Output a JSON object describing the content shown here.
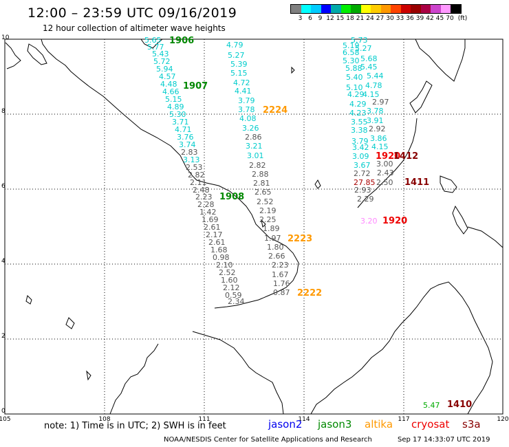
{
  "title": "12:00 – 23:59 UTC 09/16/2019",
  "subtitle": "12 hour collection of altimeter wave heights",
  "scale": {
    "colors": [
      "#808080",
      "#00ffff",
      "#00ccff",
      "#0000ff",
      "#00aaaa",
      "#00ee00",
      "#00aa00",
      "#ffff00",
      "#ffcc00",
      "#ff9900",
      "#ff4400",
      "#cc0000",
      "#990000",
      "#aa0044",
      "#cc44cc",
      "#ff99ff",
      "#000000"
    ],
    "labels": [
      "3",
      "6",
      "9",
      "12",
      "15",
      "18",
      "21",
      "24",
      "27",
      "30",
      "33",
      "36",
      "39",
      "42",
      "45",
      "70",
      "(ft)"
    ]
  },
  "axes": {
    "lon_ticks": [
      "105",
      "108",
      "111",
      "114",
      "117",
      "120"
    ],
    "lat_ticks": [
      "10",
      "8",
      "6",
      "4",
      "2",
      "0"
    ]
  },
  "passes": [
    {
      "time": "1906",
      "satellite": "jason3",
      "color": "#008800"
    },
    {
      "time": "1907",
      "satellite": "jason3",
      "color": "#008800"
    },
    {
      "time": "1908",
      "satellite": "jason3",
      "color": "#008800"
    },
    {
      "time": "2224",
      "satellite": "altika",
      "color": "#ff9900"
    },
    {
      "time": "2223",
      "satellite": "altika",
      "color": "#ff9900"
    },
    {
      "time": "2222",
      "satellite": "altika",
      "color": "#ff9900"
    },
    {
      "time": "1920",
      "satellite": "cryosat",
      "color": "#ee0000"
    },
    {
      "time": "1920",
      "satellite": "cryosat",
      "color": "#ee0000"
    },
    {
      "time": "1412",
      "satellite": "s3a",
      "color": "#880000"
    },
    {
      "time": "1411",
      "satellite": "s3a",
      "color": "#880000"
    },
    {
      "time": "1410",
      "satellite": "s3a",
      "color": "#880000"
    }
  ],
  "wave_heights": [
    {
      "v": "5.65",
      "c": "#00cccc"
    },
    {
      "v": "5.77",
      "c": "#00cccc"
    },
    {
      "v": "5.43",
      "c": "#00cccc"
    },
    {
      "v": "5.72",
      "c": "#00cccc"
    },
    {
      "v": "5.94",
      "c": "#00cccc"
    },
    {
      "v": "4.57",
      "c": "#00cccc"
    },
    {
      "v": "4.48",
      "c": "#00cccc"
    },
    {
      "v": "4.66",
      "c": "#00cccc"
    },
    {
      "v": "5.15",
      "c": "#00cccc"
    },
    {
      "v": "4.89",
      "c": "#00cccc"
    },
    {
      "v": "5.30",
      "c": "#00cccc"
    },
    {
      "v": "3.71",
      "c": "#00cccc"
    },
    {
      "v": "4.71",
      "c": "#00cccc"
    },
    {
      "v": "3.76",
      "c": "#00cccc"
    },
    {
      "v": "3.74",
      "c": "#00cccc"
    },
    {
      "v": "2.83",
      "c": "#555555"
    },
    {
      "v": "3.13",
      "c": "#00cccc"
    },
    {
      "v": "2.53",
      "c": "#555555"
    },
    {
      "v": "2.82",
      "c": "#555555"
    },
    {
      "v": "2.11",
      "c": "#555555"
    },
    {
      "v": "2.48",
      "c": "#555555"
    },
    {
      "v": "2.23",
      "c": "#555555"
    },
    {
      "v": "2.28",
      "c": "#555555"
    },
    {
      "v": "1.42",
      "c": "#555555"
    },
    {
      "v": "1.69",
      "c": "#555555"
    },
    {
      "v": "2.61",
      "c": "#555555"
    },
    {
      "v": "2.17",
      "c": "#555555"
    },
    {
      "v": "2.61",
      "c": "#555555"
    },
    {
      "v": "1.68",
      "c": "#555555"
    },
    {
      "v": "0.98",
      "c": "#555555"
    },
    {
      "v": "2.10",
      "c": "#555555"
    },
    {
      "v": "2.52",
      "c": "#555555"
    },
    {
      "v": "1.60",
      "c": "#555555"
    },
    {
      "v": "2.12",
      "c": "#555555"
    },
    {
      "v": "0.59",
      "c": "#555555"
    },
    {
      "v": "2.34",
      "c": "#555555"
    },
    {
      "v": "4.79",
      "c": "#00cccc"
    },
    {
      "v": "5.27",
      "c": "#00cccc"
    },
    {
      "v": "5.39",
      "c": "#00cccc"
    },
    {
      "v": "5.15",
      "c": "#00cccc"
    },
    {
      "v": "4.72",
      "c": "#00cccc"
    },
    {
      "v": "4.41",
      "c": "#00cccc"
    },
    {
      "v": "3.79",
      "c": "#00cccc"
    },
    {
      "v": "3.78",
      "c": "#00cccc"
    },
    {
      "v": "4.08",
      "c": "#00cccc"
    },
    {
      "v": "3.26",
      "c": "#00cccc"
    },
    {
      "v": "2.86",
      "c": "#555555"
    },
    {
      "v": "3.21",
      "c": "#00cccc"
    },
    {
      "v": "3.01",
      "c": "#00cccc"
    },
    {
      "v": "2.82",
      "c": "#555555"
    },
    {
      "v": "2.88",
      "c": "#555555"
    },
    {
      "v": "2.81",
      "c": "#555555"
    },
    {
      "v": "2.65",
      "c": "#555555"
    },
    {
      "v": "2.52",
      "c": "#555555"
    },
    {
      "v": "2.19",
      "c": "#555555"
    },
    {
      "v": "2.25",
      "c": "#555555"
    },
    {
      "v": "1.89",
      "c": "#555555"
    },
    {
      "v": "1.97",
      "c": "#555555"
    },
    {
      "v": "1.80",
      "c": "#555555"
    },
    {
      "v": "2.66",
      "c": "#555555"
    },
    {
      "v": "2.23",
      "c": "#555555"
    },
    {
      "v": "1.67",
      "c": "#555555"
    },
    {
      "v": "1.76",
      "c": "#555555"
    },
    {
      "v": "0.87",
      "c": "#555555"
    },
    {
      "v": "5.73",
      "c": "#00cccc"
    },
    {
      "v": "5.19",
      "c": "#00cccc"
    },
    {
      "v": "5.27",
      "c": "#00cccc"
    },
    {
      "v": "6.58",
      "c": "#00cccc"
    },
    {
      "v": "5.68",
      "c": "#00cccc"
    },
    {
      "v": "5.30",
      "c": "#00cccc"
    },
    {
      "v": "5.45",
      "c": "#00cccc"
    },
    {
      "v": "5.88",
      "c": "#00cccc"
    },
    {
      "v": "5.44",
      "c": "#00cccc"
    },
    {
      "v": "5.40",
      "c": "#00cccc"
    },
    {
      "v": "4.78",
      "c": "#00cccc"
    },
    {
      "v": "5.10",
      "c": "#00cccc"
    },
    {
      "v": "4.15",
      "c": "#00cccc"
    },
    {
      "v": "4.29",
      "c": "#00cccc"
    },
    {
      "v": "2.97",
      "c": "#555555"
    },
    {
      "v": "4.29",
      "c": "#00cccc"
    },
    {
      "v": "3.78",
      "c": "#00cccc"
    },
    {
      "v": "4.23",
      "c": "#00cccc"
    },
    {
      "v": "3.91",
      "c": "#00cccc"
    },
    {
      "v": "3.55",
      "c": "#00cccc"
    },
    {
      "v": "2.92",
      "c": "#555555"
    },
    {
      "v": "3.38",
      "c": "#00cccc"
    },
    {
      "v": "3.86",
      "c": "#00cccc"
    },
    {
      "v": "3.79",
      "c": "#00cccc"
    },
    {
      "v": "4.15",
      "c": "#00cccc"
    },
    {
      "v": "3.42",
      "c": "#00cccc"
    },
    {
      "v": "3.09",
      "c": "#00cccc"
    },
    {
      "v": "3.00",
      "c": "#555555"
    },
    {
      "v": "3.67",
      "c": "#00cccc"
    },
    {
      "v": "2.43",
      "c": "#555555"
    },
    {
      "v": "2.72",
      "c": "#555555"
    },
    {
      "v": "2.50",
      "c": "#555555"
    },
    {
      "v": "27.85",
      "c": "#aa0000"
    },
    {
      "v": "2.93",
      "c": "#555555"
    },
    {
      "v": "2.29",
      "c": "#555555"
    },
    {
      "v": "3.20",
      "c": "#ff88ff"
    },
    {
      "v": "5.47",
      "c": "#00aa00"
    }
  ],
  "note": "note:  1) Time is in UTC;  2) SWH is in feet",
  "legend": [
    {
      "name": "jason2",
      "color": "#0000ee"
    },
    {
      "name": "jason3",
      "color": "#008800"
    },
    {
      "name": "altika",
      "color": "#ff9900"
    },
    {
      "name": "cryosat",
      "color": "#ee0000"
    },
    {
      "name": "s3a",
      "color": "#880000"
    }
  ],
  "credit": "NOAA/NESDIS Center for Satellite Applications and Research",
  "timestamp": "Sep 17 14:33:07 UTC 2019"
}
